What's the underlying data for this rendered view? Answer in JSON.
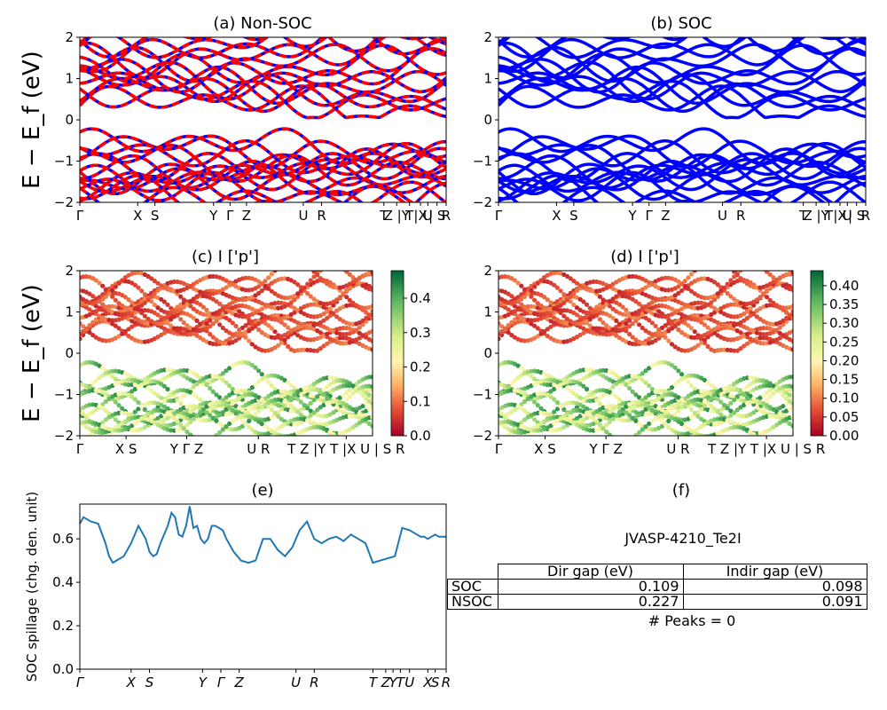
{
  "chart_data": [
    {
      "panel": "a",
      "type": "line",
      "title": "(a) Non-SOC",
      "ylabel": "E − E_f (eV)",
      "ylim": [
        -2,
        2
      ],
      "yticks": [
        "2",
        "1",
        "0",
        "−1",
        "−2"
      ],
      "xticks": [
        "Γ",
        "X",
        "S",
        "Y",
        "Γ",
        "Z",
        "U",
        "R",
        "T",
        "Z |Y",
        "T",
        "|X",
        "U",
        "| S",
        "R"
      ],
      "series_colors": [
        "#ff0000",
        "#0000ff"
      ],
      "line_style": "dashed red over blue",
      "band_extrema_eV": {
        "valence_max": 0.0,
        "conduction_min": 0.1
      }
    },
    {
      "panel": "b",
      "type": "line",
      "title": "(b) SOC",
      "ylim": [
        -2,
        2
      ],
      "yticks": [
        "2",
        "1",
        "0",
        "−1",
        "−2"
      ],
      "xticks": [
        "Γ",
        "X",
        "S",
        "Y",
        "Γ",
        "Z",
        "U",
        "R",
        "T",
        "Z |Y",
        "T",
        "|X",
        "U",
        "| S",
        "R"
      ],
      "series_colors": [
        "#0000ff"
      ]
    },
    {
      "panel": "c",
      "type": "scatter",
      "title": "(c)  I ['p']",
      "ylabel": "E − E_f (eV)",
      "ylim": [
        -2,
        2
      ],
      "yticks": [
        "2",
        "1",
        "0",
        "−1",
        "−2"
      ],
      "xticks": [
        "Γ",
        "X S",
        "Y Γ Z",
        "U R",
        "T Z |Y T |X U | S R"
      ],
      "colorbar": {
        "range": [
          0.0,
          0.48
        ],
        "ticks": [
          "0.4",
          "0.3",
          "0.2",
          "0.1",
          "0.0"
        ],
        "cmap": "RdYlGn"
      }
    },
    {
      "panel": "d",
      "type": "scatter",
      "title": "(d) I ['p']",
      "ylim": [
        -2,
        2
      ],
      "yticks": [
        "2",
        "1",
        "0",
        "−1",
        "−2"
      ],
      "xticks": [
        "Γ",
        "X S",
        "Y Γ Z",
        "U R",
        "T Z |Y T |X U | S R"
      ],
      "colorbar": {
        "range": [
          0.0,
          0.44
        ],
        "ticks": [
          "0.40",
          "0.35",
          "0.30",
          "0.25",
          "0.20",
          "0.15",
          "0.10",
          "0.05",
          "0.00"
        ],
        "cmap": "RdYlGn"
      }
    },
    {
      "panel": "e",
      "type": "line",
      "title": "(e)",
      "ylabel": "SOC spillage (chg. den. unit)",
      "ylim": [
        0,
        0.76
      ],
      "yticks": [
        "0.0",
        "0.2",
        "0.4",
        "0.6"
      ],
      "xticks": [
        "Γ",
        "X",
        "S",
        "Y",
        "Γ",
        "Z",
        "U",
        "R",
        "T",
        "Z",
        "Y",
        "T",
        "U",
        "X",
        "S",
        "R"
      ],
      "series": [
        {
          "color": "#1f77b4",
          "x": [
            0,
            0.01,
            0.03,
            0.05,
            0.07,
            0.08,
            0.09,
            0.1,
            0.12,
            0.14,
            0.16,
            0.18,
            0.19,
            0.2,
            0.21,
            0.22,
            0.24,
            0.25,
            0.26,
            0.27,
            0.28,
            0.29,
            0.3,
            0.31,
            0.32,
            0.33,
            0.34,
            0.35,
            0.36,
            0.37,
            0.38,
            0.39,
            0.4,
            0.42,
            0.44,
            0.46,
            0.48,
            0.5,
            0.52,
            0.54,
            0.56,
            0.58,
            0.6,
            0.62,
            0.64,
            0.66,
            0.68,
            0.7,
            0.72,
            0.74,
            0.76,
            0.78,
            0.8,
            0.82,
            0.84,
            0.86,
            0.88,
            0.9,
            0.92,
            0.93,
            0.94,
            0.95,
            0.96,
            0.97,
            0.98,
            0.99,
            1.0
          ],
          "y": [
            0.67,
            0.7,
            0.68,
            0.67,
            0.58,
            0.52,
            0.49,
            0.5,
            0.52,
            0.58,
            0.66,
            0.6,
            0.54,
            0.52,
            0.53,
            0.58,
            0.66,
            0.72,
            0.7,
            0.62,
            0.61,
            0.66,
            0.75,
            0.65,
            0.66,
            0.6,
            0.58,
            0.6,
            0.66,
            0.66,
            0.65,
            0.64,
            0.6,
            0.54,
            0.5,
            0.49,
            0.5,
            0.6,
            0.6,
            0.55,
            0.52,
            0.56,
            0.64,
            0.68,
            0.6,
            0.58,
            0.6,
            0.61,
            0.59,
            0.62,
            0.6,
            0.58,
            0.49,
            0.5,
            0.51,
            0.52,
            0.65,
            0.64,
            0.62,
            0.61,
            0.61,
            0.6,
            0.61,
            0.62,
            0.61,
            0.61,
            0.61
          ]
        }
      ]
    }
  ],
  "table": {
    "panel_title": "(f)",
    "title": "JVASP-4210_Te2I",
    "headers": [
      "Dir gap (eV)",
      "Indir gap (eV)"
    ],
    "rows": [
      {
        "label": "SOC",
        "dir": "0.109",
        "indir": "0.098"
      },
      {
        "label": "NSOC",
        "dir": "0.227",
        "indir": "0.091"
      }
    ],
    "footer": "# Peaks = 0"
  }
}
